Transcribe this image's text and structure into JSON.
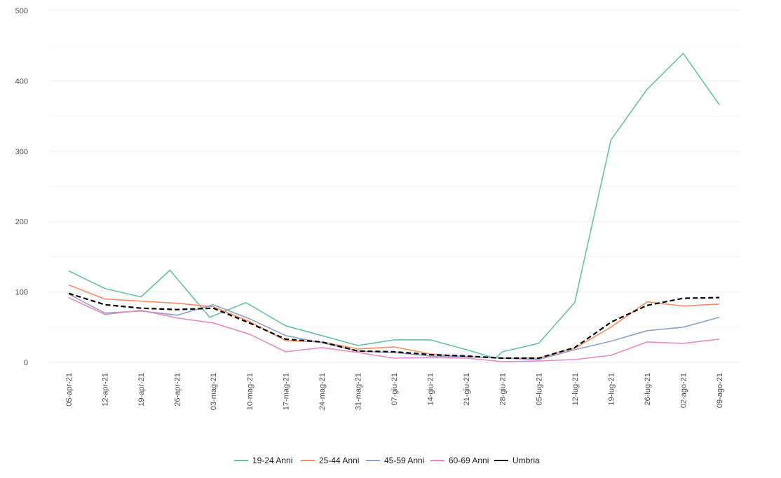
{
  "chart_data": {
    "type": "line",
    "title": "",
    "xlabel": "",
    "ylabel": "",
    "ylim": [
      0,
      500
    ],
    "yticks": [
      0,
      100,
      200,
      300,
      400,
      500
    ],
    "grid": true,
    "legend_position": "bottom",
    "categories": [
      "05-apr-21",
      "12-apr-21",
      "19-apr-21",
      "26-apr-21",
      "03-mag-21",
      "10-mag-21",
      "17-mag-21",
      "24-mag-21",
      "31-mag-21",
      "07-giu-21",
      "14-giu-21",
      "21-giu-21",
      "28-giu-21",
      "05-lug-21",
      "12-lug-21",
      "19-lug-21",
      "26-lug-21",
      "02-ago-21",
      "09-ago-21"
    ],
    "x": [
      0,
      1,
      2,
      2.8,
      3,
      3.8,
      4,
      5,
      6,
      7,
      8,
      9,
      10,
      11,
      11.9,
      12,
      13,
      14,
      15,
      16,
      17,
      18
    ],
    "series": [
      {
        "name": "19-24 Anni",
        "color": "#66c2a5",
        "dash": false,
        "points": [
          [
            0,
            130
          ],
          [
            1,
            105
          ],
          [
            2,
            93
          ],
          [
            2.8,
            131
          ],
          [
            3.9,
            64
          ],
          [
            4.9,
            85
          ],
          [
            6,
            52
          ],
          [
            7,
            38
          ],
          [
            8,
            24
          ],
          [
            9,
            32
          ],
          [
            10,
            32
          ],
          [
            11,
            18
          ],
          [
            11.8,
            6
          ],
          [
            12,
            15
          ],
          [
            13,
            27
          ],
          [
            14,
            85
          ],
          [
            15,
            316
          ],
          [
            16,
            388
          ],
          [
            17,
            439
          ],
          [
            18,
            366
          ]
        ]
      },
      {
        "name": "25-44 Anni",
        "color": "#fc8d62",
        "dash": false,
        "points": [
          [
            0,
            110
          ],
          [
            1,
            90
          ],
          [
            2,
            87
          ],
          [
            3,
            84
          ],
          [
            4,
            79
          ],
          [
            5,
            58
          ],
          [
            6,
            31
          ],
          [
            7,
            29
          ],
          [
            8,
            19
          ],
          [
            9,
            22
          ],
          [
            10,
            12
          ],
          [
            11,
            8
          ],
          [
            12,
            6
          ],
          [
            13,
            6
          ],
          [
            14,
            20
          ],
          [
            15,
            50
          ],
          [
            16,
            86
          ],
          [
            17,
            80
          ],
          [
            18,
            83
          ]
        ]
      },
      {
        "name": "45-59 Anni",
        "color": "#8da0cb",
        "dash": false,
        "points": [
          [
            0,
            97
          ],
          [
            1,
            70
          ],
          [
            2,
            73
          ],
          [
            3,
            67
          ],
          [
            4,
            82
          ],
          [
            5,
            62
          ],
          [
            6,
            38
          ],
          [
            7,
            28
          ],
          [
            8,
            16
          ],
          [
            9,
            14
          ],
          [
            10,
            9
          ],
          [
            11,
            8
          ],
          [
            12,
            6
          ],
          [
            13,
            4
          ],
          [
            14,
            18
          ],
          [
            15,
            30
          ],
          [
            16,
            45
          ],
          [
            17,
            50
          ],
          [
            18,
            64
          ]
        ]
      },
      {
        "name": "60-69 Anni",
        "color": "#e78ac3",
        "dash": false,
        "points": [
          [
            0,
            92
          ],
          [
            1,
            68
          ],
          [
            2,
            74
          ],
          [
            3,
            63
          ],
          [
            4,
            56
          ],
          [
            5,
            40
          ],
          [
            6,
            15
          ],
          [
            7,
            21
          ],
          [
            8,
            14
          ],
          [
            9,
            6
          ],
          [
            10,
            7
          ],
          [
            11,
            6
          ],
          [
            12,
            1
          ],
          [
            13,
            2
          ],
          [
            14,
            4
          ],
          [
            15,
            10
          ],
          [
            16,
            29
          ],
          [
            17,
            27
          ],
          [
            18,
            33
          ]
        ]
      },
      {
        "name": "Umbria",
        "color": "#000000",
        "dash": true,
        "points": [
          [
            0,
            98
          ],
          [
            1,
            82
          ],
          [
            2,
            77
          ],
          [
            3,
            75
          ],
          [
            4,
            77
          ],
          [
            5,
            56
          ],
          [
            6,
            33
          ],
          [
            7,
            29
          ],
          [
            8,
            16
          ],
          [
            9,
            15
          ],
          [
            10,
            11
          ],
          [
            11,
            9
          ],
          [
            12,
            6
          ],
          [
            13,
            6
          ],
          [
            14,
            21
          ],
          [
            15,
            57
          ],
          [
            16,
            81
          ],
          [
            17,
            91
          ],
          [
            18,
            92
          ]
        ]
      }
    ]
  }
}
